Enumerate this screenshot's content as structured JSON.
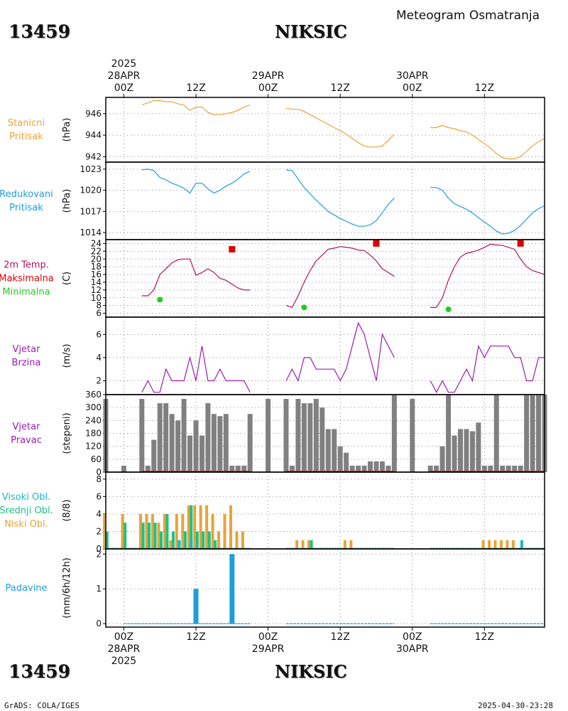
{
  "header": {
    "station_id": "13459",
    "station_name": "NIKSIC",
    "title": "Meteogram Osmatranja"
  },
  "footer": {
    "credit": "GrADS: COLA/IGES",
    "timestamp": "2025-04-30-23:28"
  },
  "time_axis": {
    "year": "2025",
    "day_labels": [
      "28APR",
      "29APR",
      "30APR"
    ],
    "hour_labels": [
      "00Z",
      "12Z",
      "00Z",
      "12Z",
      "00Z",
      "12Z"
    ],
    "hour_positions_h": [
      0,
      12,
      24,
      36,
      48,
      60
    ],
    "range_h": [
      -3,
      70
    ]
  },
  "colors": {
    "pressure": "#E8A33C",
    "reduced_pressure": "#1E9ED9",
    "temperature": "#B0125C",
    "tmax": "#E00000",
    "tmin": "#22CC22",
    "wind_speed": "#9B1BB0",
    "wind_dir": "#808080",
    "cloud_high": "#17B8C8",
    "cloud_mid": "#20C080",
    "cloud_low": "#E8A33C",
    "precip": "#1E9ED9",
    "frame": "#000000",
    "grid": "#888888"
  },
  "chart_data": [
    {
      "type": "line",
      "id": "pressure",
      "labels": [
        "Stanicni",
        "Pritisak"
      ],
      "unit": "(hPa)",
      "ylim": [
        941.5,
        947.5
      ],
      "yticks": [
        942,
        944,
        946
      ],
      "series": [
        {
          "segments": [
            {
              "x": [
                3,
                4,
                5,
                6,
                7,
                8,
                9,
                10,
                11,
                12,
                13,
                14,
                15,
                16,
                17,
                18,
                19,
                20,
                21
              ],
              "y": [
                946.8,
                947.0,
                947.2,
                947.2,
                947.1,
                947.1,
                946.9,
                946.8,
                946.3,
                946.6,
                946.6,
                946.1,
                945.9,
                945.9,
                946.0,
                946.1,
                946.3,
                946.6,
                946.8
              ]
            },
            {
              "x": [
                27,
                28,
                29,
                30,
                31,
                32,
                33,
                34,
                35,
                36,
                37,
                38,
                39,
                40,
                41,
                42,
                43,
                44,
                45
              ],
              "y": [
                946.5,
                946.4,
                946.4,
                946.2,
                945.9,
                945.6,
                945.3,
                945.0,
                944.7,
                944.4,
                944.1,
                943.7,
                943.3,
                943.0,
                942.9,
                942.9,
                943.0,
                943.5,
                944.1
              ]
            },
            {
              "x": [
                51,
                52,
                53,
                54,
                55,
                56,
                57,
                58,
                59,
                60,
                61,
                62,
                63,
                64,
                65,
                66,
                67,
                68,
                69,
                70
              ],
              "y": [
                944.7,
                944.7,
                944.9,
                944.7,
                944.6,
                944.4,
                944.3,
                944.0,
                943.6,
                943.2,
                942.8,
                942.3,
                941.9,
                941.8,
                941.8,
                942.0,
                942.5,
                943.0,
                943.4,
                943.7
              ]
            }
          ]
        }
      ]
    },
    {
      "type": "line",
      "id": "reduced_pressure",
      "labels": [
        "Redukovani",
        "Pritisak"
      ],
      "unit": "(hPa)",
      "ylim": [
        1013,
        1024
      ],
      "yticks": [
        1014,
        1017,
        1020,
        1023
      ],
      "series": [
        {
          "segments": [
            {
              "x": [
                3,
                4,
                5,
                6,
                7,
                8,
                9,
                10,
                11,
                12,
                13,
                14,
                15,
                16,
                17,
                18,
                19,
                20,
                21
              ],
              "y": [
                1022.9,
                1023.0,
                1022.8,
                1021.8,
                1021.5,
                1021.0,
                1020.7,
                1020.3,
                1019.6,
                1021.0,
                1021.0,
                1020.2,
                1019.6,
                1020.0,
                1020.6,
                1021.0,
                1021.6,
                1022.3,
                1022.7
              ]
            },
            {
              "x": [
                27,
                28,
                29,
                30,
                31,
                32,
                33,
                34,
                35,
                36,
                37,
                38,
                39,
                40,
                41,
                42,
                43,
                44,
                45
              ],
              "y": [
                1022.9,
                1022.8,
                1021.6,
                1020.4,
                1019.5,
                1018.6,
                1017.8,
                1017.0,
                1016.5,
                1016.0,
                1015.6,
                1015.2,
                1014.9,
                1014.9,
                1015.1,
                1015.7,
                1016.8,
                1018.0,
                1018.9
              ]
            },
            {
              "x": [
                51,
                52,
                53,
                54,
                55,
                56,
                57,
                58,
                59,
                60,
                61,
                62,
                63,
                64,
                65,
                66,
                67,
                68,
                69,
                70
              ],
              "y": [
                1020.4,
                1020.4,
                1020.0,
                1018.9,
                1018.1,
                1017.7,
                1017.3,
                1016.8,
                1016.1,
                1015.5,
                1014.9,
                1014.2,
                1013.8,
                1013.9,
                1014.3,
                1015.0,
                1015.9,
                1016.8,
                1017.4,
                1017.8
              ]
            }
          ]
        }
      ]
    },
    {
      "type": "line",
      "id": "temperature",
      "labels": [
        "2m Temp.",
        "Maksimalna",
        "Minimalna"
      ],
      "unit": "(C)",
      "ylim": [
        5,
        25
      ],
      "yticks": [
        6,
        8,
        10,
        12,
        14,
        16,
        18,
        20,
        22,
        24
      ],
      "series": [
        {
          "segments": [
            {
              "x": [
                3,
                4,
                5,
                6,
                7,
                8,
                9,
                10,
                11,
                12,
                13,
                14,
                15,
                16,
                17,
                18,
                19,
                20,
                21
              ],
              "y": [
                10.5,
                10.5,
                12.0,
                16.0,
                17.5,
                19.0,
                19.8,
                20.0,
                20.0,
                15.8,
                16.5,
                17.5,
                16.5,
                15.0,
                14.5,
                13.5,
                12.5,
                12.0,
                12.0
              ]
            },
            {
              "x": [
                27,
                28,
                29,
                30,
                31,
                32,
                33,
                34,
                35,
                36,
                37,
                38,
                39,
                40,
                41,
                42,
                43,
                44,
                45
              ],
              "y": [
                8.0,
                7.5,
                10.5,
                14.0,
                17.0,
                19.5,
                21.0,
                22.5,
                22.8,
                23.2,
                23.0,
                22.8,
                22.3,
                22.2,
                21.0,
                19.5,
                17.5,
                16.5,
                15.5
              ]
            },
            {
              "x": [
                51,
                52,
                53,
                54,
                55,
                56,
                57,
                58,
                59,
                60,
                61,
                62,
                63,
                64,
                65,
                66,
                67,
                68,
                69,
                70
              ],
              "y": [
                7.5,
                7.5,
                10.0,
                14.5,
                18.0,
                20.5,
                21.5,
                21.8,
                22.3,
                23.0,
                23.8,
                23.6,
                23.5,
                23.0,
                22.5,
                20.0,
                18.0,
                17.0,
                16.5,
                16.0
              ]
            }
          ]
        }
      ],
      "tmax_points": {
        "x": [
          18,
          42,
          66
        ],
        "y": [
          22.5,
          24,
          24
        ]
      },
      "tmin_points": {
        "x": [
          6,
          30,
          54
        ],
        "y": [
          9.5,
          7.5,
          7
        ]
      }
    },
    {
      "type": "line",
      "id": "wind_speed",
      "labels": [
        "Vjetar",
        "Brzina"
      ],
      "unit": "(m/s)",
      "ylim": [
        0.8,
        7.5
      ],
      "yticks": [
        2,
        4,
        6
      ],
      "series": [
        {
          "segments": [
            {
              "x": [
                3,
                4,
                5,
                6,
                7,
                8,
                9,
                10,
                11,
                12,
                13,
                14,
                15,
                16,
                17,
                18,
                19,
                20,
                21
              ],
              "y": [
                1,
                2,
                1,
                1,
                3,
                2,
                2,
                2,
                4,
                2,
                5,
                2,
                2,
                3,
                2,
                2,
                2,
                2,
                1
              ]
            },
            {
              "x": [
                27,
                28,
                29,
                30,
                31,
                32,
                33,
                34,
                35,
                36,
                37,
                38,
                39,
                40,
                41,
                42,
                43,
                44,
                45
              ],
              "y": [
                2,
                3,
                2,
                4,
                4,
                3,
                3,
                3,
                3,
                2,
                3,
                5,
                7,
                6,
                4,
                2,
                6,
                5,
                4
              ]
            },
            {
              "x": [
                51,
                52,
                53,
                54,
                55,
                56,
                57,
                58,
                59,
                60,
                61,
                62,
                63,
                64,
                65,
                66,
                67,
                68,
                69,
                70
              ],
              "y": [
                2,
                1,
                2,
                1,
                1,
                2,
                3,
                2,
                5,
                4,
                5,
                5,
                5,
                5,
                4,
                4,
                2,
                2,
                4,
                4
              ]
            }
          ]
        }
      ]
    },
    {
      "type": "bar",
      "id": "wind_dir",
      "labels": [
        "Vjetar",
        "Pravac"
      ],
      "unit": "(stepeni)",
      "ylim": [
        0,
        360
      ],
      "yticks": [
        0,
        60,
        120,
        180,
        240,
        300,
        360
      ],
      "x": [
        -3,
        0,
        3,
        4,
        5,
        6,
        7,
        8,
        9,
        10,
        11,
        12,
        13,
        14,
        15,
        16,
        17,
        18,
        19,
        20,
        21,
        24,
        27,
        28,
        29,
        30,
        31,
        32,
        33,
        34,
        35,
        36,
        37,
        38,
        39,
        40,
        41,
        42,
        43,
        44,
        45,
        48,
        51,
        52,
        53,
        54,
        55,
        56,
        57,
        58,
        59,
        60,
        61,
        62,
        63,
        64,
        65,
        66,
        67,
        68,
        69,
        70
      ],
      "values": [
        340,
        30,
        340,
        30,
        150,
        320,
        320,
        270,
        240,
        340,
        170,
        240,
        170,
        320,
        270,
        260,
        270,
        30,
        30,
        30,
        270,
        340,
        340,
        30,
        340,
        320,
        320,
        340,
        300,
        200,
        200,
        120,
        90,
        30,
        30,
        30,
        50,
        50,
        50,
        30,
        360,
        340,
        30,
        30,
        120,
        360,
        170,
        200,
        200,
        190,
        230,
        30,
        30,
        360,
        30,
        30,
        30,
        30,
        360,
        360,
        360,
        360
      ],
      "calm_marker_y": 0
    },
    {
      "type": "bar",
      "id": "clouds",
      "labels": [
        "Visoki Obl.",
        "Srednji Obl.",
        "Niski Obl."
      ],
      "unit": "(8/8)",
      "ylim": [
        0,
        8.8
      ],
      "yticks": [
        0,
        2,
        4,
        6,
        8
      ],
      "series": [
        {
          "name": "Visoki Obl.",
          "x": [
            9,
            11,
            66
          ],
          "values": [
            1,
            1,
            1
          ]
        },
        {
          "name": "Srednji Obl.",
          "x": [
            -3,
            0,
            3,
            4,
            5,
            6,
            7,
            8,
            9,
            10,
            11,
            12,
            13,
            14,
            15,
            31
          ],
          "values": [
            2,
            3,
            3,
            3,
            3,
            2,
            4,
            2,
            1,
            2,
            5,
            2,
            2,
            2,
            1,
            1
          ]
        },
        {
          "name": "Niski Obl.",
          "x": [
            -3,
            0,
            3,
            4,
            5,
            6,
            7,
            8,
            9,
            10,
            11,
            12,
            13,
            14,
            15,
            16,
            17,
            18,
            19,
            20,
            29,
            30,
            31,
            37,
            38,
            60,
            61,
            62,
            63,
            64,
            65
          ],
          "values": [
            4,
            4,
            4,
            4,
            4,
            3,
            4,
            1,
            4,
            4,
            5,
            5,
            5,
            5,
            4,
            2,
            4,
            5,
            2,
            2,
            1,
            1,
            1,
            1,
            1,
            1,
            1,
            1,
            1,
            1,
            1
          ]
        }
      ]
    },
    {
      "type": "bar",
      "id": "precip",
      "labels": [
        "Padavine"
      ],
      "unit": "(mm/6h/12h)",
      "ylim": [
        -0.1,
        2.15
      ],
      "yticks": [
        0,
        1,
        2
      ],
      "x": [
        12,
        18
      ],
      "values": [
        1,
        2
      ]
    }
  ]
}
